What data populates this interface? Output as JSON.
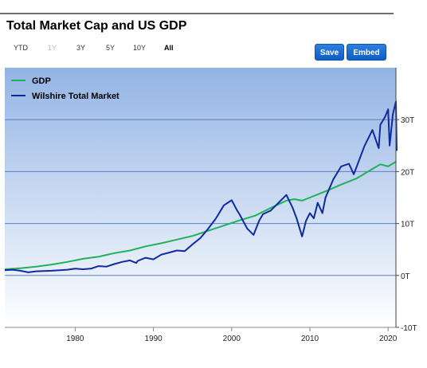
{
  "title": "Total Market Cap and US GDP",
  "range_selector": {
    "items": [
      {
        "label": "YTD",
        "state": "normal"
      },
      {
        "label": "1Y",
        "state": "disabled"
      },
      {
        "label": "3Y",
        "state": "normal"
      },
      {
        "label": "5Y",
        "state": "normal"
      },
      {
        "label": "10Y",
        "state": "normal"
      },
      {
        "label": "All",
        "state": "active"
      }
    ]
  },
  "buttons": {
    "save": "Save",
    "embed": "Embed"
  },
  "colors": {
    "gdp": "#1fb25a",
    "market": "#102a9e",
    "plot_top": "#93b4e4",
    "plot_bottom": "#ffffff",
    "accent_button": "#1565c8"
  },
  "chart_data": {
    "type": "line",
    "title": "",
    "xlabel": "",
    "ylabel": "",
    "xlim": [
      1971,
      2021
    ],
    "ylim": [
      -10,
      40
    ],
    "x_ticks": [
      {
        "value": 1980,
        "label": "1980"
      },
      {
        "value": 1990,
        "label": "1990"
      },
      {
        "value": 2000,
        "label": "2000"
      },
      {
        "value": 2010,
        "label": "2010"
      },
      {
        "value": 2020,
        "label": "2020"
      }
    ],
    "y_ticks": [
      {
        "value": -10,
        "label": "-10T"
      },
      {
        "value": 0,
        "label": "0T"
      },
      {
        "value": 10,
        "label": "10T"
      },
      {
        "value": 20,
        "label": "20T"
      },
      {
        "value": 30,
        "label": "30T"
      }
    ],
    "legend_position": "top-left",
    "grid": true,
    "series": [
      {
        "name": "GDP",
        "color": "#1fb25a",
        "points": [
          [
            1971,
            1.2
          ],
          [
            1973,
            1.4
          ],
          [
            1975,
            1.7
          ],
          [
            1977,
            2.1
          ],
          [
            1979,
            2.6
          ],
          [
            1981,
            3.2
          ],
          [
            1983,
            3.6
          ],
          [
            1985,
            4.3
          ],
          [
            1987,
            4.8
          ],
          [
            1989,
            5.6
          ],
          [
            1991,
            6.2
          ],
          [
            1993,
            6.9
          ],
          [
            1995,
            7.6
          ],
          [
            1997,
            8.6
          ],
          [
            1999,
            9.6
          ],
          [
            2001,
            10.6
          ],
          [
            2003,
            11.5
          ],
          [
            2005,
            13.0
          ],
          [
            2007,
            14.4
          ],
          [
            2008,
            14.7
          ],
          [
            2009,
            14.4
          ],
          [
            2010,
            15.0
          ],
          [
            2012,
            16.2
          ],
          [
            2014,
            17.5
          ],
          [
            2016,
            18.7
          ],
          [
            2018,
            20.5
          ],
          [
            2019,
            21.4
          ],
          [
            2020,
            21.0
          ],
          [
            2021,
            21.9
          ]
        ]
      },
      {
        "name": "Wilshire Total Market",
        "color": "#102a9e",
        "points": [
          [
            1971,
            1.0
          ],
          [
            1972,
            1.1
          ],
          [
            1973,
            0.9
          ],
          [
            1974,
            0.6
          ],
          [
            1975,
            0.8
          ],
          [
            1977,
            0.9
          ],
          [
            1979,
            1.1
          ],
          [
            1980,
            1.3
          ],
          [
            1981,
            1.2
          ],
          [
            1982,
            1.3
          ],
          [
            1983,
            1.8
          ],
          [
            1984,
            1.7
          ],
          [
            1985,
            2.2
          ],
          [
            1986,
            2.6
          ],
          [
            1987,
            2.9
          ],
          [
            1987.8,
            2.4
          ],
          [
            1988,
            2.8
          ],
          [
            1989,
            3.4
          ],
          [
            1990,
            3.1
          ],
          [
            1991,
            4.0
          ],
          [
            1992,
            4.4
          ],
          [
            1993,
            4.8
          ],
          [
            1994,
            4.7
          ],
          [
            1995,
            6.0
          ],
          [
            1996,
            7.2
          ],
          [
            1997,
            9.0
          ],
          [
            1998,
            11.0
          ],
          [
            1999,
            13.5
          ],
          [
            2000,
            14.5
          ],
          [
            2000.7,
            12.5
          ],
          [
            2001,
            11.8
          ],
          [
            2002,
            9.0
          ],
          [
            2002.8,
            7.8
          ],
          [
            2003.5,
            10.5
          ],
          [
            2004,
            11.8
          ],
          [
            2005,
            12.5
          ],
          [
            2006,
            14.0
          ],
          [
            2007,
            15.5
          ],
          [
            2007.8,
            13.0
          ],
          [
            2008.3,
            11.0
          ],
          [
            2009,
            7.5
          ],
          [
            2009.5,
            10.5
          ],
          [
            2010,
            12.0
          ],
          [
            2010.5,
            11.0
          ],
          [
            2011,
            14.0
          ],
          [
            2011.6,
            12.0
          ],
          [
            2012,
            15.0
          ],
          [
            2013,
            18.5
          ],
          [
            2014,
            21.0
          ],
          [
            2015,
            21.5
          ],
          [
            2015.6,
            19.5
          ],
          [
            2016,
            21.0
          ],
          [
            2017,
            25.0
          ],
          [
            2018,
            28.0
          ],
          [
            2018.8,
            24.5
          ],
          [
            2019,
            29.0
          ],
          [
            2019.6,
            30.5
          ],
          [
            2020.0,
            32.0
          ],
          [
            2020.2,
            25.0
          ],
          [
            2020.6,
            31.0
          ],
          [
            2021,
            33.5
          ],
          [
            2021.1,
            24.0
          ]
        ]
      }
    ]
  }
}
